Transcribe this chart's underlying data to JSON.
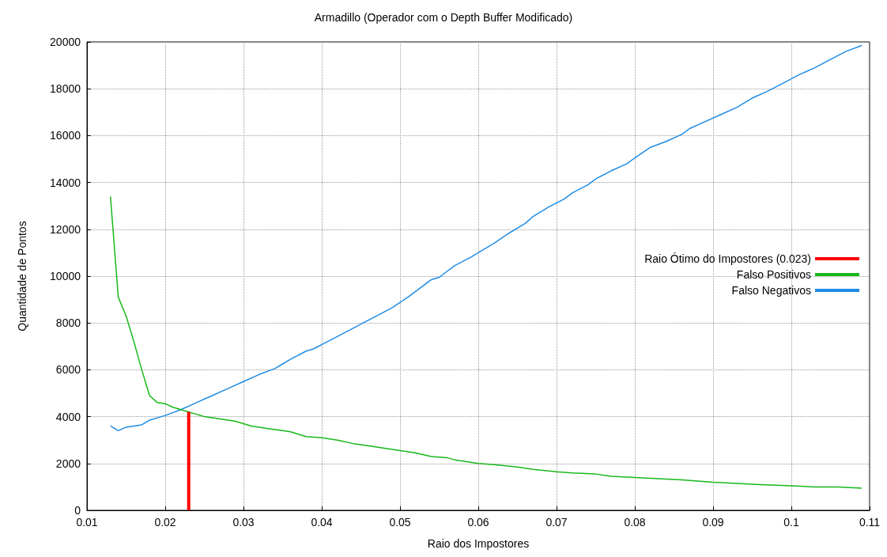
{
  "chart_data": {
    "type": "line",
    "title": "Armadillo (Operador com o Depth Buffer Modificado)",
    "xlabel": "Raio dos Impostores",
    "ylabel": "Quantidade de Pontos",
    "xlim": [
      0.01,
      0.11
    ],
    "xticks": [
      0.01,
      0.02,
      0.03,
      0.04,
      0.05,
      0.06,
      0.07,
      0.08,
      0.09,
      0.1,
      0.11
    ],
    "ylim": [
      0,
      20000
    ],
    "yticks": [
      0,
      2000,
      4000,
      6000,
      8000,
      10000,
      12000,
      14000,
      16000,
      18000,
      20000
    ],
    "grid": true,
    "legend": "right",
    "marker": "none",
    "line_style": "solid",
    "series": [
      {
        "name": "Raio Ótimo do Impostores (0.023)",
        "color": "#ff0000",
        "x": [
          0.023,
          0.023
        ],
        "values": [
          0,
          4200
        ]
      },
      {
        "name": "Falso Positivos",
        "color": "#18b818",
        "x": [
          0.013,
          0.014,
          0.015,
          0.016,
          0.017,
          0.018,
          0.019,
          0.02,
          0.021,
          0.022,
          0.023,
          0.024,
          0.025,
          0.027,
          0.029,
          0.03,
          0.031,
          0.033,
          0.035,
          0.036,
          0.037,
          0.038,
          0.04,
          0.042,
          0.044,
          0.046,
          0.048,
          0.05,
          0.052,
          0.054,
          0.056,
          0.057,
          0.058,
          0.06,
          0.062,
          0.065,
          0.067,
          0.07,
          0.072,
          0.075,
          0.077,
          0.08,
          0.083,
          0.086,
          0.09,
          0.093,
          0.096,
          0.1,
          0.103,
          0.106,
          0.109
        ],
        "values": [
          13400,
          9100,
          8300,
          7200,
          6000,
          4900,
          4600,
          4550,
          4400,
          4300,
          4200,
          4100,
          4000,
          3900,
          3800,
          3700,
          3600,
          3500,
          3400,
          3350,
          3250,
          3150,
          3100,
          3000,
          2850,
          2750,
          2650,
          2550,
          2450,
          2300,
          2250,
          2150,
          2100,
          2000,
          1950,
          1850,
          1750,
          1650,
          1600,
          1550,
          1450,
          1400,
          1350,
          1300,
          1200,
          1150,
          1100,
          1050,
          1000,
          1000,
          950
        ]
      },
      {
        "name": "Falso Negativos",
        "color": "#1e8ce6",
        "x": [
          0.013,
          0.014,
          0.015,
          0.017,
          0.018,
          0.02,
          0.022,
          0.024,
          0.026,
          0.028,
          0.03,
          0.032,
          0.034,
          0.035,
          0.036,
          0.038,
          0.039,
          0.041,
          0.043,
          0.045,
          0.047,
          0.049,
          0.051,
          0.053,
          0.054,
          0.055,
          0.057,
          0.059,
          0.06,
          0.062,
          0.064,
          0.066,
          0.067,
          0.069,
          0.071,
          0.072,
          0.074,
          0.075,
          0.077,
          0.079,
          0.08,
          0.082,
          0.084,
          0.086,
          0.087,
          0.089,
          0.091,
          0.093,
          0.095,
          0.097,
          0.099,
          0.101,
          0.103,
          0.105,
          0.107,
          0.109
        ],
        "values": [
          3600,
          3400,
          3550,
          3650,
          3850,
          4050,
          4300,
          4600,
          4900,
          5200,
          5500,
          5800,
          6050,
          6250,
          6450,
          6800,
          6900,
          7250,
          7600,
          7950,
          8300,
          8650,
          9100,
          9600,
          9850,
          9950,
          10450,
          10800,
          11000,
          11400,
          11850,
          12250,
          12550,
          12950,
          13300,
          13550,
          13900,
          14150,
          14500,
          14800,
          15050,
          15500,
          15750,
          16050,
          16300,
          16600,
          16900,
          17200,
          17600,
          17900,
          18250,
          18600,
          18900,
          19250,
          19600,
          19850
        ]
      }
    ]
  }
}
